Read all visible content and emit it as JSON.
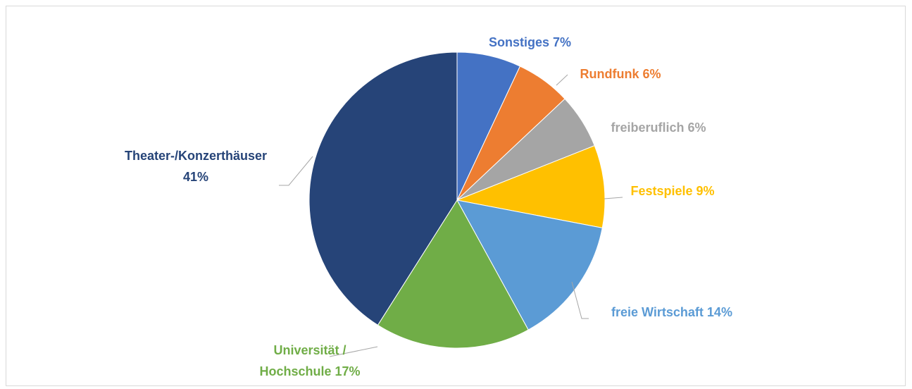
{
  "chart_data": {
    "type": "pie",
    "categories": [
      "Sonstiges",
      "Rundfunk",
      "freiberuflich",
      "Festspiele",
      "freie Wirtschaft",
      "Universität / Hochschule",
      "Theater-/Konzerthäuser"
    ],
    "values": [
      7,
      6,
      6,
      9,
      14,
      17,
      41
    ],
    "value_labels": [
      "7%",
      "6%",
      "6%",
      "9%",
      "14%",
      "17%",
      "41%"
    ],
    "colors": [
      "#4472c4",
      "#ed7d31",
      "#a5a5a5",
      "#ffc000",
      "#5b9bd5",
      "#70ad47",
      "#264478"
    ]
  }
}
